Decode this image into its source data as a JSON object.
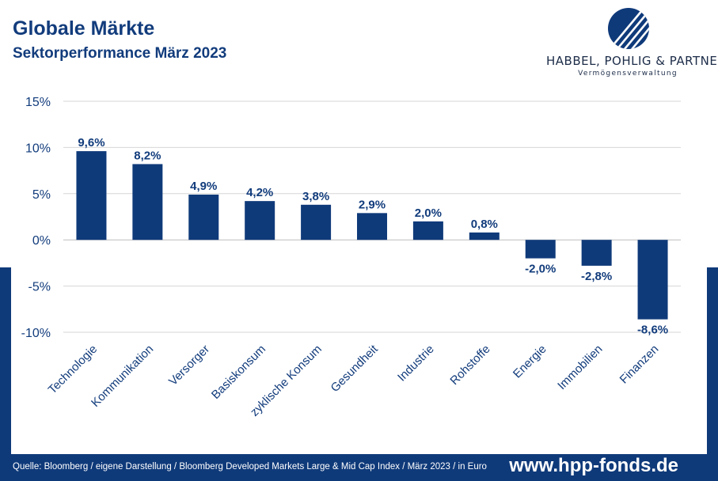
{
  "header": {
    "title": "Globale Märkte",
    "subtitle": "Sektorperformance März 2023"
  },
  "logo": {
    "name": "HABBEL, POHLIG & PARTNER",
    "tagline": "Vermögensverwaltung"
  },
  "chart_data": {
    "type": "bar",
    "categories": [
      "Technologie",
      "Kommunikation",
      "Versorger",
      "Basiskonsum",
      "zyklische Konsum",
      "Gesundheit",
      "Industrie",
      "Rohstoffe",
      "Energie",
      "Immobilien",
      "Finanzen"
    ],
    "values": [
      9.6,
      8.2,
      4.9,
      4.2,
      3.8,
      2.9,
      2.0,
      0.8,
      -2.0,
      -2.8,
      -8.6
    ],
    "value_labels": [
      "9,6%",
      "8,2%",
      "4,9%",
      "4,2%",
      "3,8%",
      "2,9%",
      "2,0%",
      "0,8%",
      "-2,0%",
      "-2,8%",
      "-8,6%"
    ],
    "y_ticks": [
      15,
      10,
      5,
      0,
      -5,
      -10
    ],
    "y_tick_labels": [
      "15%",
      "10%",
      "5%",
      "0%",
      "-5%",
      "-10%"
    ],
    "ylim": [
      -10,
      15
    ],
    "grid": true,
    "bar_color": "#0f3a7a"
  },
  "footer": {
    "source": "Quelle: Bloomberg / eigene Darstellung / Bloomberg Developed Markets Large & Mid Cap Index / März 2023 / in Euro",
    "url": "www.hpp-fonds.de"
  }
}
